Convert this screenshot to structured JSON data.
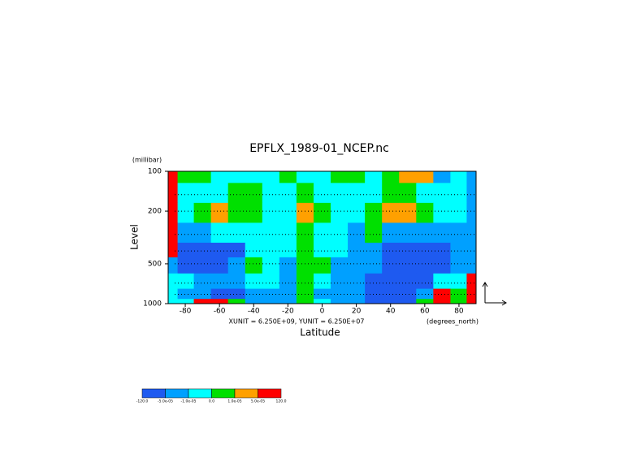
{
  "chart_data": {
    "type": "contour",
    "title": "EPFLX_1989-01_NCEP.nc",
    "y_label": "Level",
    "y_unit": "(millibar)",
    "x_label": "Latitude",
    "x_unit": "(degrees_north)",
    "vector_note": "XUNIT = 6.250E+09, YUNIT = 6.250E+07",
    "x": [
      -89,
      -80,
      -70,
      -60,
      -50,
      -40,
      -30,
      -20,
      -10,
      0,
      10,
      20,
      30,
      40,
      50,
      60,
      70,
      80,
      89
    ],
    "y": [
      100,
      150,
      200,
      300,
      400,
      500,
      700,
      850,
      1000
    ],
    "z": [
      [
        6e-05,
        5e-06,
        5e-06,
        -5e-06,
        -5e-06,
        -5e-06,
        -5e-06,
        5e-06,
        -5e-06,
        -5e-06,
        5e-06,
        5e-06,
        -5e-06,
        5e-06,
        3e-05,
        3e-05,
        -3e-05,
        -5e-06,
        -3e-05
      ],
      [
        6e-05,
        -5e-06,
        -5e-06,
        -5e-06,
        5e-06,
        5e-06,
        -5e-06,
        -5e-06,
        5e-06,
        -5e-06,
        -5e-06,
        -5e-06,
        -5e-06,
        5e-06,
        5e-06,
        -5e-06,
        -5e-06,
        -5e-06,
        -3e-05
      ],
      [
        6e-05,
        -5e-06,
        5e-06,
        3e-05,
        5e-06,
        5e-06,
        -5e-06,
        -5e-06,
        3e-05,
        5e-06,
        -5e-06,
        -5e-06,
        5e-06,
        3e-05,
        3e-05,
        5e-06,
        -5e-06,
        -5e-06,
        -3e-05
      ],
      [
        6e-05,
        -3e-05,
        -3e-05,
        -5e-06,
        -5e-06,
        -5e-06,
        -5e-06,
        -5e-06,
        5e-06,
        -5e-06,
        -5e-06,
        -3e-05,
        5e-06,
        -3e-05,
        -3e-05,
        -3e-05,
        -3e-05,
        -3e-05,
        -3e-05
      ],
      [
        6e-05,
        -6e-05,
        -6e-05,
        -6e-05,
        -6e-05,
        -5e-06,
        -5e-06,
        -5e-06,
        5e-06,
        -5e-06,
        -5e-06,
        -3e-05,
        -3e-05,
        -6e-05,
        -6e-05,
        -6e-05,
        -6e-05,
        -3e-05,
        -3e-05
      ],
      [
        -3e-05,
        -6e-05,
        -6e-05,
        -6e-05,
        -3e-05,
        5e-06,
        -5e-06,
        -3e-05,
        5e-06,
        5e-06,
        -3e-05,
        -3e-05,
        -3e-05,
        -6e-05,
        -6e-05,
        -6e-05,
        -6e-05,
        -3e-05,
        -3e-05
      ],
      [
        -5e-06,
        -5e-06,
        -3e-05,
        -3e-05,
        -3e-05,
        -5e-06,
        -5e-06,
        -3e-05,
        5e-06,
        -5e-06,
        -3e-05,
        -3e-05,
        -6e-05,
        -6e-05,
        -6e-05,
        -6e-05,
        -5e-06,
        -5e-06,
        6e-05
      ],
      [
        -5e-06,
        -3e-05,
        -3e-05,
        -6e-05,
        -6e-05,
        -3e-05,
        -3e-05,
        -3e-05,
        5e-06,
        -3e-05,
        -3e-05,
        -3e-05,
        -6e-05,
        -6e-05,
        -6e-05,
        -3e-05,
        6e-05,
        5e-06,
        6e-05
      ],
      [
        -5e-06,
        -5e-06,
        6e-05,
        6e-05,
        5e-06,
        -3e-05,
        -3e-05,
        -3e-05,
        5e-06,
        -5e-06,
        -3e-05,
        -3e-05,
        -6e-05,
        -6e-05,
        -6e-05,
        5e-06,
        6e-05,
        5e-06,
        6e-05
      ]
    ],
    "xlim": [
      -90,
      90
    ],
    "ylim": [
      100,
      1000
    ],
    "y_log": true,
    "y_reversed": true,
    "xticks": [
      -80,
      -60,
      -40,
      -20,
      0,
      20,
      40,
      60,
      80
    ],
    "yticks": [
      100,
      200,
      500,
      1000
    ],
    "levels": [
      {
        "value": -120,
        "label": "-120.0"
      },
      {
        "value": -5e-05,
        "label": "-5.0e-05"
      },
      {
        "value": -1e-05,
        "label": "-1.0e-05"
      },
      {
        "value": 0,
        "label": "0.0"
      },
      {
        "value": 1e-05,
        "label": "1.0e-05"
      },
      {
        "value": 5e-05,
        "label": "5.0e-05"
      },
      {
        "value": 120,
        "label": "120.0"
      }
    ],
    "level_colors": [
      "#1e5af0",
      "#00a0ff",
      "#00ffff",
      "#00e000",
      "#ffa000",
      "#ff0000"
    ]
  }
}
